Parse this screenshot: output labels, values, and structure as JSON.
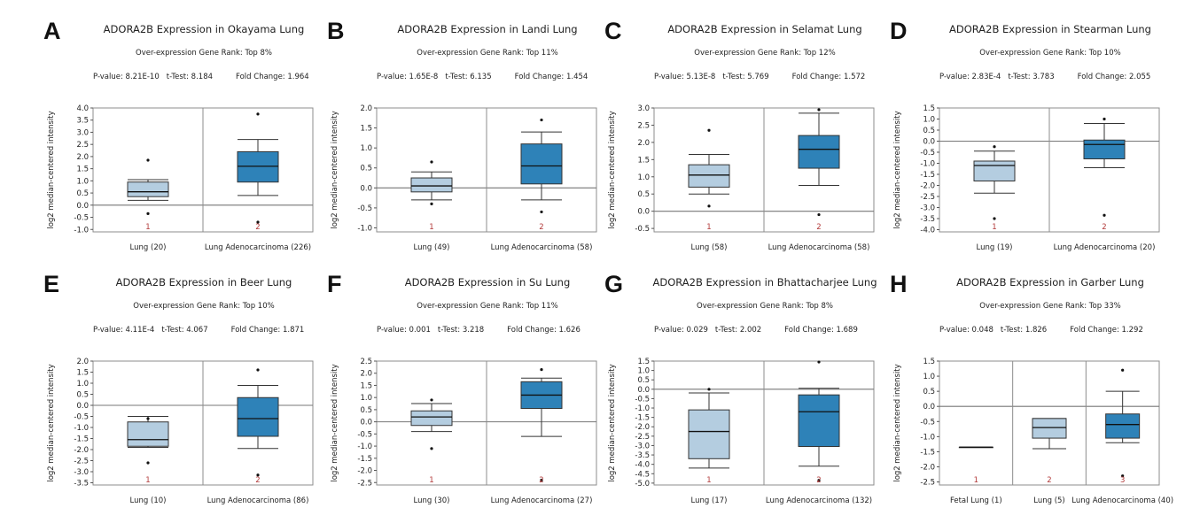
{
  "colors": {
    "normal_box": "#b4cde0",
    "tumor_box": "#2e82b8",
    "frame": "#8c8c8c",
    "zero_line": "#777777",
    "index_label": "#b23a3a"
  },
  "ylabel": "log2 median-centered intensity",
  "chart_data": [
    {
      "panel": "A",
      "type": "box",
      "title": "ADORA2B Expression in Okayama Lung",
      "rank": "Over-expression Gene Rank: Top 8%",
      "pvalue": "P-value: 8.21E-10",
      "ttest": "t-Test: 8.184",
      "foldchange": "Fold Change: 1.964",
      "ylabel": "log2 median-centered intensity",
      "ylim": [
        -1.1,
        4.0
      ],
      "yticks": [
        "4.0",
        "3.5",
        "3.0",
        "2.5",
        "2.0",
        "1.5",
        "1.0",
        "0.5",
        "0.0",
        "-0.5",
        "-1.0"
      ],
      "groups": [
        {
          "index": "1",
          "label": "Lung (20)",
          "color": "normal",
          "whislo": 0.2,
          "q1": 0.35,
          "med": 0.55,
          "q3": 0.95,
          "whishi": 1.05,
          "outliers": [
            1.85,
            -0.35
          ]
        },
        {
          "index": "2",
          "label": "Lung Adenocarcinoma (226)",
          "color": "tumor",
          "whislo": 0.4,
          "q1": 0.95,
          "med": 1.6,
          "q3": 2.2,
          "whishi": 2.7,
          "outliers": [
            3.75,
            -0.7
          ]
        }
      ]
    },
    {
      "panel": "B",
      "type": "box",
      "title": "ADORA2B Expression in Landi Lung",
      "rank": "Over-expression Gene Rank: Top 11%",
      "pvalue": "P-value: 1.65E-8",
      "ttest": "t-Test: 6.135",
      "foldchange": "Fold Change: 1.454",
      "ylabel": "log2 median-centered intensity",
      "ylim": [
        -1.1,
        2.0
      ],
      "yticks": [
        "2.0",
        "1.5",
        "1.0",
        "0.5",
        "0.0",
        "-0.5",
        "-1.0"
      ],
      "groups": [
        {
          "index": "1",
          "label": "Lung (49)",
          "color": "normal",
          "whislo": -0.3,
          "q1": -0.1,
          "med": 0.05,
          "q3": 0.25,
          "whishi": 0.4,
          "outliers": [
            0.65,
            -0.4
          ]
        },
        {
          "index": "2",
          "label": "Lung Adenocarcinoma (58)",
          "color": "tumor",
          "whislo": -0.3,
          "q1": 0.1,
          "med": 0.55,
          "q3": 1.1,
          "whishi": 1.4,
          "outliers": [
            1.7,
            -0.6
          ]
        }
      ]
    },
    {
      "panel": "C",
      "type": "box",
      "title": "ADORA2B Expression in Selamat Lung",
      "rank": "Over-expression Gene Rank: Top 12%",
      "pvalue": "P-value: 5.13E-8",
      "ttest": "t-Test: 5.769",
      "foldchange": "Fold Change: 1.572",
      "ylabel": "log2 median-centered intensity",
      "ylim": [
        -0.6,
        3.0
      ],
      "yticks": [
        "3.0",
        "2.5",
        "2.0",
        "1.5",
        "1.0",
        "0.5",
        "0.0",
        "-0.5"
      ],
      "groups": [
        {
          "index": "1",
          "label": "Lung (58)",
          "color": "normal",
          "whislo": 0.5,
          "q1": 0.7,
          "med": 1.05,
          "q3": 1.35,
          "whishi": 1.65,
          "outliers": [
            2.35,
            0.15
          ]
        },
        {
          "index": "2",
          "label": "Lung Adenocarcinoma (58)",
          "color": "tumor",
          "whislo": 0.75,
          "q1": 1.25,
          "med": 1.8,
          "q3": 2.2,
          "whishi": 2.85,
          "outliers": [
            2.95,
            -0.1
          ]
        }
      ]
    },
    {
      "panel": "D",
      "type": "box",
      "title": "ADORA2B Expression in Stearman Lung",
      "rank": "Over-expression Gene Rank: Top 10%",
      "pvalue": "P-value: 2.83E-4",
      "ttest": "t-Test: 3.783",
      "foldchange": "Fold Change: 2.055",
      "ylabel": "log2 median-centered intensity",
      "ylim": [
        -4.1,
        1.5
      ],
      "yticks": [
        "1.5",
        "1.0",
        "0.5",
        "0.0",
        "-0.5",
        "-1.0",
        "-1.5",
        "-2.0",
        "-2.5",
        "-3.0",
        "-3.5",
        "-4.0"
      ],
      "groups": [
        {
          "index": "1",
          "label": "Lung (19)",
          "color": "normal",
          "whislo": -2.35,
          "q1": -1.8,
          "med": -1.1,
          "q3": -0.9,
          "whishi": -0.45,
          "outliers": [
            -0.25,
            -3.5
          ]
        },
        {
          "index": "2",
          "label": "Lung Adenocarcinoma (20)",
          "color": "tumor",
          "whislo": -1.2,
          "q1": -0.8,
          "med": -0.15,
          "q3": 0.05,
          "whishi": 0.8,
          "outliers": [
            1.0,
            -3.35
          ]
        }
      ]
    },
    {
      "panel": "E",
      "type": "box",
      "title": "ADORA2B Expression in Beer Lung",
      "rank": "Over-expression Gene Rank: Top 10%",
      "pvalue": "P-value: 4.11E-4",
      "ttest": "t-Test: 4.067",
      "foldchange": "Fold Change: 1.871",
      "ylabel": "log2 median-centered intensity",
      "ylim": [
        -3.6,
        2.0
      ],
      "yticks": [
        "2.0",
        "1.5",
        "1.0",
        "0.5",
        "0.0",
        "-0.5",
        "-1.0",
        "-1.5",
        "-2.0",
        "-2.5",
        "-3.0",
        "-3.5"
      ],
      "groups": [
        {
          "index": "1",
          "label": "Lung (10)",
          "color": "normal",
          "whislo": -1.9,
          "q1": -1.85,
          "med": -1.55,
          "q3": -0.75,
          "whishi": -0.5,
          "outliers": [
            -0.6,
            -2.6
          ]
        },
        {
          "index": "2",
          "label": "Lung Adenocarcinoma (86)",
          "color": "tumor",
          "whislo": -1.95,
          "q1": -1.4,
          "med": -0.6,
          "q3": 0.35,
          "whishi": 0.9,
          "outliers": [
            1.6,
            -3.15
          ]
        }
      ]
    },
    {
      "panel": "F",
      "type": "box",
      "title": "ADORA2B Expression in Su Lung",
      "rank": "Over-expression Gene Rank: Top 11%",
      "pvalue": "P-value: 0.001",
      "ttest": "t-Test: 3.218",
      "foldchange": "Fold Change: 1.626",
      "ylabel": "log2 median-centered intensity",
      "ylim": [
        -2.6,
        2.5
      ],
      "yticks": [
        "2.5",
        "2.0",
        "1.5",
        "1.0",
        "0.5",
        "0.0",
        "-0.5",
        "-1.0",
        "-1.5",
        "-2.0",
        "-2.5"
      ],
      "groups": [
        {
          "index": "1",
          "label": "Lung (30)",
          "color": "normal",
          "whislo": -0.4,
          "q1": -0.15,
          "med": 0.2,
          "q3": 0.45,
          "whishi": 0.75,
          "outliers": [
            0.9,
            -1.1
          ]
        },
        {
          "index": "2",
          "label": "Lung Adenocarcinoma (27)",
          "color": "tumor",
          "whislo": -0.6,
          "q1": 0.55,
          "med": 1.1,
          "q3": 1.65,
          "whishi": 1.8,
          "outliers": [
            2.15,
            -2.4
          ]
        }
      ]
    },
    {
      "panel": "G",
      "type": "box",
      "title": "ADORA2B Expression in Bhattacharjee Lung",
      "rank": "Over-expression Gene Rank: Top 8%",
      "pvalue": "P-value: 0.029",
      "ttest": "t-Test: 2.002",
      "foldchange": "Fold Change: 1.689",
      "ylabel": "log2 median-centered intensity",
      "ylim": [
        -5.1,
        1.5
      ],
      "yticks": [
        "1.5",
        "1.0",
        "0.5",
        "0.0",
        "-0.5",
        "-1.0",
        "-1.5",
        "-2.0",
        "-2.5",
        "-3.0",
        "-3.5",
        "-4.0",
        "-4.5",
        "-5.0"
      ],
      "groups": [
        {
          "index": "1",
          "label": "Lung (17)",
          "color": "normal",
          "whislo": -4.2,
          "q1": -3.7,
          "med": -2.25,
          "q3": -1.1,
          "whishi": -0.2,
          "outliers": [
            0.0
          ]
        },
        {
          "index": "2",
          "label": "Lung Adenocarcinoma (132)",
          "color": "tumor",
          "whislo": -4.1,
          "q1": -3.05,
          "med": -1.2,
          "q3": -0.3,
          "whishi": 0.05,
          "outliers": [
            1.45,
            -4.85
          ]
        }
      ]
    },
    {
      "panel": "H",
      "type": "box",
      "title": "ADORA2B Expression in Garber Lung",
      "rank": "Over-expression Gene Rank: Top 33%",
      "pvalue": "P-value: 0.048",
      "ttest": "t-Test: 1.826",
      "foldchange": "Fold Change: 1.292",
      "ylabel": "log2 median-centered intensity",
      "ylim": [
        -2.6,
        1.5
      ],
      "yticks": [
        "1.5",
        "1.0",
        "0.5",
        "0.0",
        "-0.5",
        "-1.0",
        "-1.5",
        "-2.0",
        "-2.5"
      ],
      "groups": [
        {
          "index": "1",
          "label": "Fetal Lung (1)",
          "color": "normal",
          "whislo": -1.35,
          "q1": -1.35,
          "med": -1.35,
          "q3": -1.35,
          "whishi": -1.35,
          "outliers": []
        },
        {
          "index": "2",
          "label": "Lung (5)",
          "color": "normal",
          "whislo": -1.4,
          "q1": -1.05,
          "med": -0.7,
          "q3": -0.4,
          "whishi": -0.4,
          "outliers": []
        },
        {
          "index": "3",
          "label": "Lung Adenocarcinoma (40)",
          "color": "tumor",
          "whislo": -1.2,
          "q1": -1.05,
          "med": -0.6,
          "q3": -0.25,
          "whishi": 0.5,
          "outliers": [
            1.2,
            -2.3
          ]
        }
      ]
    }
  ]
}
